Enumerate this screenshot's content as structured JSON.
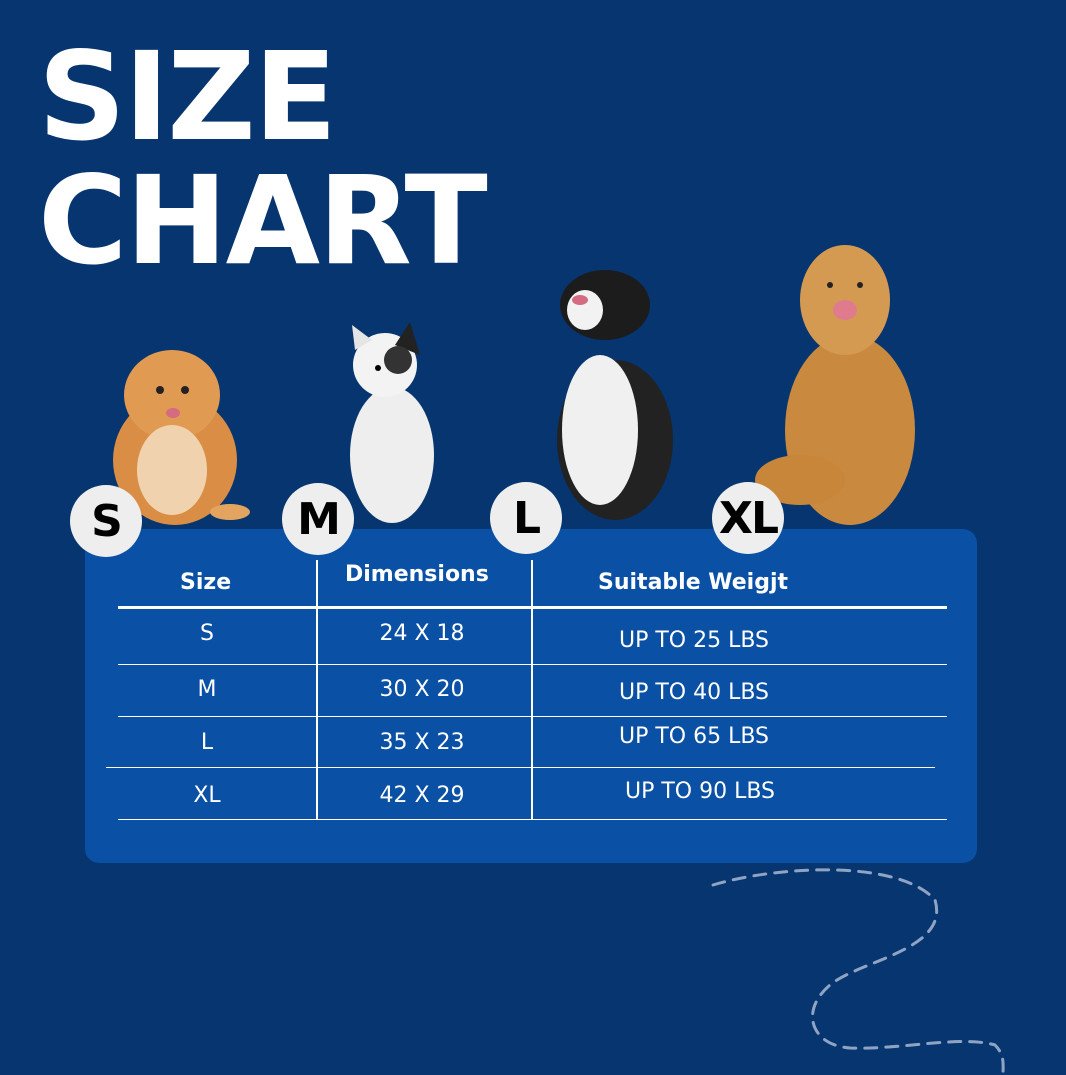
{
  "title": {
    "line1": "SIZE",
    "line2": "CHART"
  },
  "badges": [
    "S",
    "M",
    "L",
    "XL"
  ],
  "table": {
    "headers": [
      "Size",
      "Dimensions",
      "Suitable Weigjt"
    ],
    "rows": [
      {
        "size": "S",
        "dimensions": "24 X 18",
        "weight": "UP TO 25 LBS"
      },
      {
        "size": "M",
        "dimensions": "30 X 20",
        "weight": "UP TO 40 LBS"
      },
      {
        "size": "L",
        "dimensions": "35 X 23",
        "weight": "UP TO 65 LBS"
      },
      {
        "size": "XL",
        "dimensions": "42 X 29",
        "weight": "UP TO 90 LBS"
      }
    ]
  },
  "colors": {
    "background": "#06356f",
    "card": "#0a50a5",
    "badge": "#eeeeee"
  }
}
